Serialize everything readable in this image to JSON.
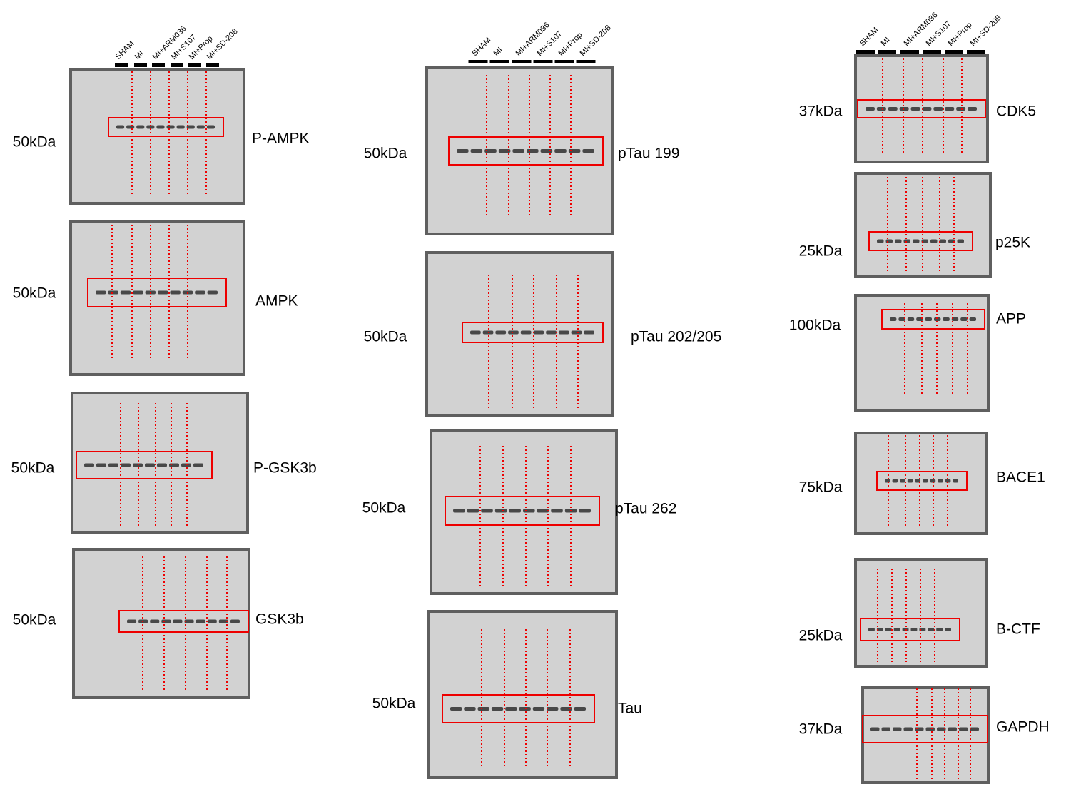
{
  "columns": [
    {
      "lanes": [
        "SHAM",
        "MI",
        "MI+ARM036",
        "MI+S107",
        "MI+Prop",
        "MI+SD-208"
      ],
      "blots": [
        {
          "mw": "50kDa",
          "name": "P-AMPK"
        },
        {
          "mw": "50kDa",
          "name": "AMPK"
        },
        {
          "mw": "50kDa",
          "name": "P-GSK3b"
        },
        {
          "mw": "50kDa",
          "name": "GSK3b"
        }
      ]
    },
    {
      "lanes": [
        "SHAM",
        "MI",
        "MI+ARM036",
        "MI+S107",
        "MI+Prop",
        "MI+SD-208"
      ],
      "blots": [
        {
          "mw": "50kDa",
          "name": "pTau 199"
        },
        {
          "mw": "50kDa",
          "name": "pTau 202/205"
        },
        {
          "mw": "50kDa",
          "name": "pTau 262"
        },
        {
          "mw": "50kDa",
          "name": "Tau"
        }
      ]
    },
    {
      "lanes": [
        "SHAM",
        "MI",
        "MI+ARM036",
        "MI+S107",
        "MI+Prop",
        "MI+SD-208"
      ],
      "blots": [
        {
          "mw": "37kDa",
          "name": "CDK5"
        },
        {
          "mw": "25kDa",
          "name": "p25K"
        },
        {
          "mw": "100kDa",
          "name": "APP"
        },
        {
          "mw": "75kDa",
          "name": "BACE1"
        },
        {
          "mw": "25kDa",
          "name": "B-CTF"
        },
        {
          "mw": "37kDa",
          "name": "GAPDH"
        }
      ]
    }
  ]
}
